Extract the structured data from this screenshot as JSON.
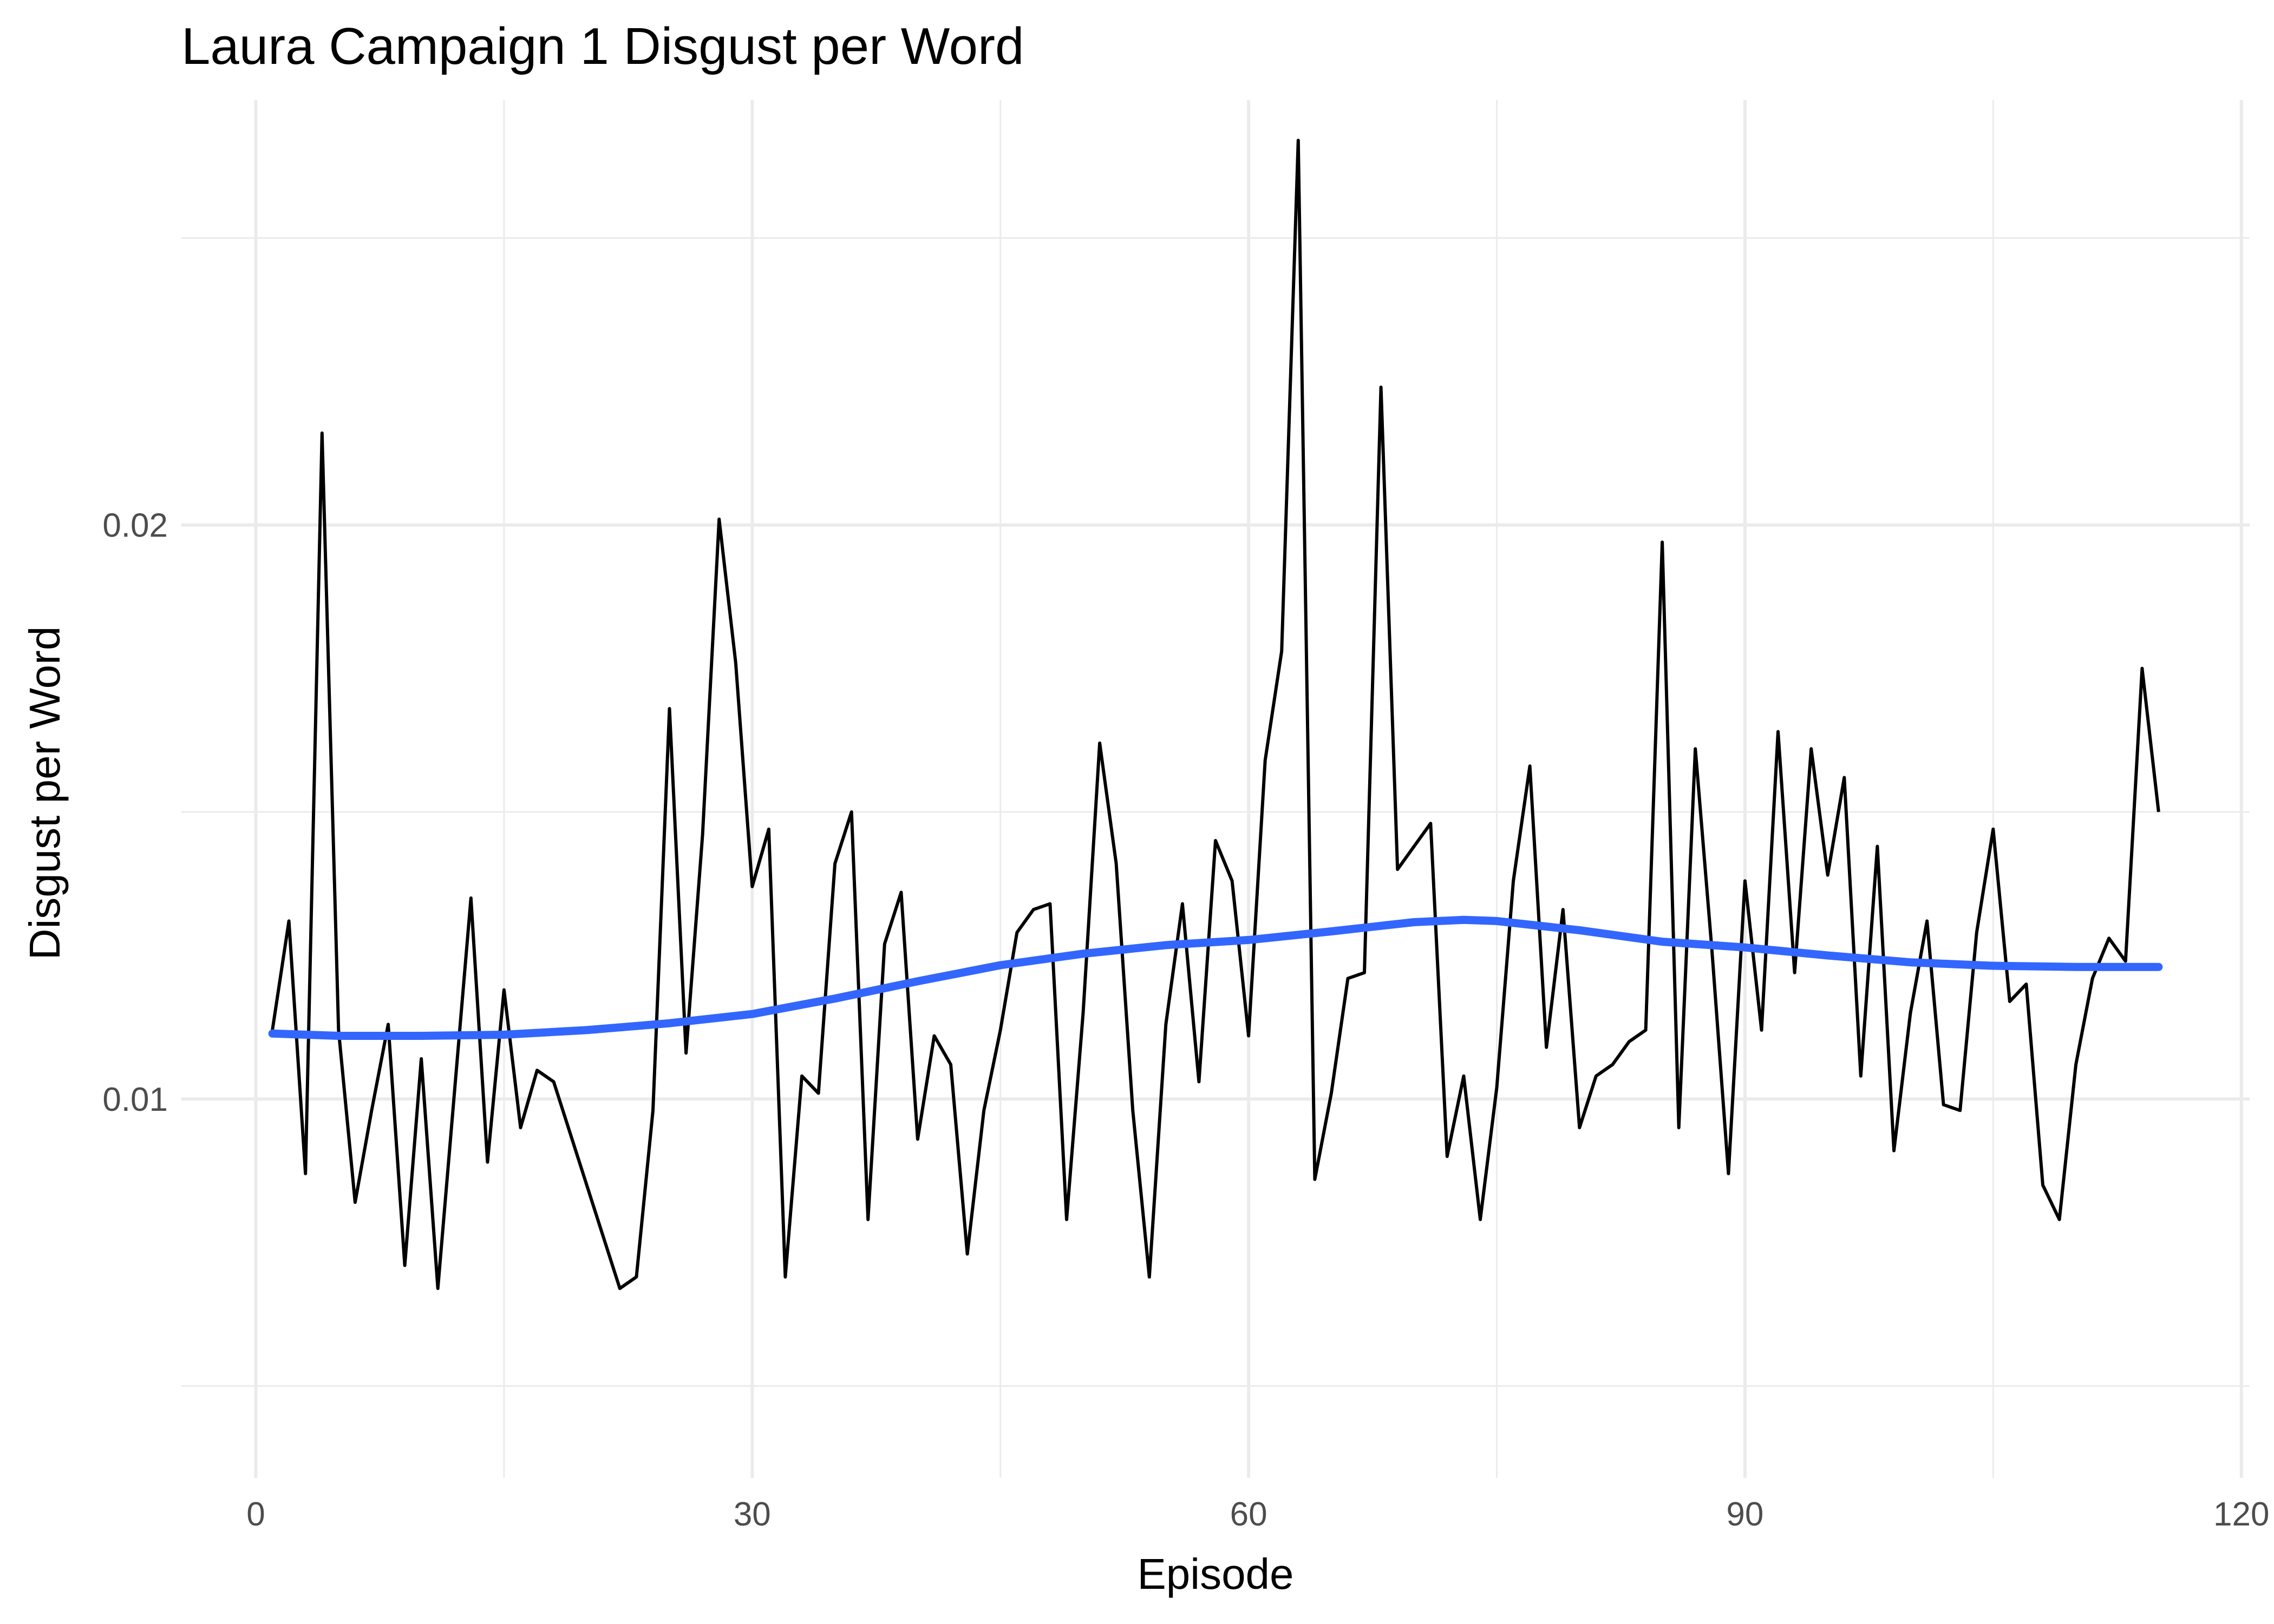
{
  "chart_data": {
    "type": "line",
    "title": "Laura Campaign 1 Disgust per Word",
    "xlabel": "Episode",
    "ylabel": "Disgust per Word",
    "xlim": [
      -4.5,
      120.5
    ],
    "ylim": [
      0.0034,
      0.0274
    ],
    "x_major_ticks": [
      0,
      30,
      60,
      90,
      120
    ],
    "x_tick_labels": [
      "0",
      "30",
      "60",
      "90",
      "120"
    ],
    "x_minor_ticks": [
      15,
      45,
      75,
      105
    ],
    "y_major_ticks": [
      0.01,
      0.02
    ],
    "y_tick_labels": [
      "0.01",
      "0.02"
    ],
    "y_minor_ticks": [
      0.005,
      0.015,
      0.025
    ],
    "grid": true,
    "legend": "none",
    "series": [
      {
        "kind": "raw",
        "color": "#000000",
        "points": [
          [
            1,
            0.0112
          ],
          [
            2,
            0.0131
          ],
          [
            3,
            0.0087
          ],
          [
            4,
            0.0216
          ],
          [
            5,
            0.0112
          ],
          [
            6,
            0.0082
          ],
          [
            7,
            0.0098
          ],
          [
            8,
            0.0113
          ],
          [
            9,
            0.0071
          ],
          [
            10,
            0.0107
          ],
          [
            11,
            0.0067
          ],
          [
            12,
            0.0101
          ],
          [
            13,
            0.0135
          ],
          [
            14,
            0.0089
          ],
          [
            15,
            0.0119
          ],
          [
            16,
            0.0095
          ],
          [
            17,
            0.0105
          ],
          [
            18,
            0.0103
          ],
          [
            22,
            0.0067
          ],
          [
            23,
            0.0069
          ],
          [
            24,
            0.0098
          ],
          [
            25,
            0.0168
          ],
          [
            26,
            0.0108
          ],
          [
            27,
            0.0146
          ],
          [
            28,
            0.0201
          ],
          [
            29,
            0.0176
          ],
          [
            30,
            0.0137
          ],
          [
            31,
            0.0147
          ],
          [
            32,
            0.0069
          ],
          [
            33,
            0.0104
          ],
          [
            34,
            0.0101
          ],
          [
            35,
            0.0141
          ],
          [
            36,
            0.015
          ],
          [
            37,
            0.0079
          ],
          [
            38,
            0.0127
          ],
          [
            39,
            0.0136
          ],
          [
            40,
            0.0093
          ],
          [
            41,
            0.0111
          ],
          [
            42,
            0.0106
          ],
          [
            43,
            0.0073
          ],
          [
            44,
            0.0098
          ],
          [
            45,
            0.0112
          ],
          [
            46,
            0.0129
          ],
          [
            47,
            0.0133
          ],
          [
            48,
            0.0134
          ],
          [
            49,
            0.0079
          ],
          [
            50,
            0.0115
          ],
          [
            51,
            0.0162
          ],
          [
            52,
            0.0141
          ],
          [
            53,
            0.0098
          ],
          [
            54,
            0.0069
          ],
          [
            55,
            0.0113
          ],
          [
            56,
            0.0134
          ],
          [
            57,
            0.0103
          ],
          [
            58,
            0.0145
          ],
          [
            59,
            0.0138
          ],
          [
            60,
            0.0111
          ],
          [
            61,
            0.0159
          ],
          [
            62,
            0.0178
          ],
          [
            63,
            0.0267
          ],
          [
            64,
            0.0086
          ],
          [
            65,
            0.0101
          ],
          [
            66,
            0.0121
          ],
          [
            67,
            0.0122
          ],
          [
            68,
            0.0224
          ],
          [
            69,
            0.014
          ],
          [
            70,
            0.0144
          ],
          [
            71,
            0.0148
          ],
          [
            72,
            0.009
          ],
          [
            73,
            0.0104
          ],
          [
            74,
            0.0079
          ],
          [
            75,
            0.0102
          ],
          [
            76,
            0.0138
          ],
          [
            77,
            0.0158
          ],
          [
            78,
            0.0109
          ],
          [
            79,
            0.0133
          ],
          [
            80,
            0.0095
          ],
          [
            81,
            0.0104
          ],
          [
            82,
            0.0106
          ],
          [
            83,
            0.011
          ],
          [
            84,
            0.0112
          ],
          [
            85,
            0.0197
          ],
          [
            86,
            0.0095
          ],
          [
            87,
            0.0161
          ],
          [
            88,
            0.0126
          ],
          [
            89,
            0.0087
          ],
          [
            90,
            0.0138
          ],
          [
            91,
            0.0112
          ],
          [
            92,
            0.0164
          ],
          [
            93,
            0.0122
          ],
          [
            94,
            0.0161
          ],
          [
            95,
            0.0139
          ],
          [
            96,
            0.0156
          ],
          [
            97,
            0.0104
          ],
          [
            98,
            0.0144
          ],
          [
            99,
            0.0091
          ],
          [
            100,
            0.0115
          ],
          [
            101,
            0.0131
          ],
          [
            102,
            0.0099
          ],
          [
            103,
            0.0098
          ],
          [
            104,
            0.0129
          ],
          [
            105,
            0.0147
          ],
          [
            106,
            0.0117
          ],
          [
            107,
            0.012
          ],
          [
            108,
            0.0085
          ],
          [
            109,
            0.0079
          ],
          [
            110,
            0.0106
          ],
          [
            111,
            0.0121
          ],
          [
            112,
            0.0128
          ],
          [
            113,
            0.0124
          ],
          [
            114,
            0.0175
          ],
          [
            115,
            0.015
          ]
        ]
      },
      {
        "kind": "smooth",
        "color": "#3366ff",
        "points": [
          [
            1,
            0.01114
          ],
          [
            5,
            0.0111
          ],
          [
            10,
            0.0111
          ],
          [
            15,
            0.01112
          ],
          [
            20,
            0.0112
          ],
          [
            25,
            0.01132
          ],
          [
            30,
            0.01148
          ],
          [
            35,
            0.01175
          ],
          [
            40,
            0.01205
          ],
          [
            45,
            0.01233
          ],
          [
            50,
            0.01253
          ],
          [
            55,
            0.01268
          ],
          [
            60,
            0.01277
          ],
          [
            65,
            0.01292
          ],
          [
            70,
            0.01308
          ],
          [
            73,
            0.01312
          ],
          [
            75,
            0.0131
          ],
          [
            80,
            0.01294
          ],
          [
            85,
            0.01274
          ],
          [
            90,
            0.01264
          ],
          [
            95,
            0.0125
          ],
          [
            100,
            0.01238
          ],
          [
            105,
            0.01232
          ],
          [
            110,
            0.0123
          ],
          [
            115,
            0.0123
          ]
        ]
      }
    ]
  }
}
